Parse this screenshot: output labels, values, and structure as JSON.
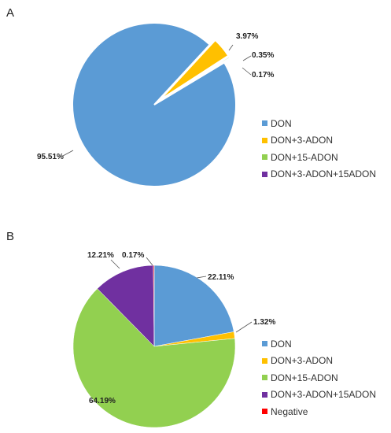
{
  "chart_data": [
    {
      "type": "pie",
      "panel_label": "A",
      "categories": [
        "DON",
        "DON+3-ADON",
        "DON+15-ADON",
        "DON+3-ADON+15ADON"
      ],
      "values": [
        95.51,
        3.97,
        0.35,
        0.17
      ],
      "data_labels": [
        "95.51%",
        "3.97%",
        "0.35%",
        "0.17%"
      ],
      "colors": [
        "#5b9bd5",
        "#ffc000",
        "#92d050",
        "#7030a0"
      ],
      "exploded_slices": [
        "DON+3-ADON",
        "DON+15-ADON",
        "DON+3-ADON+15ADON"
      ],
      "legend_position": "right"
    },
    {
      "type": "pie",
      "panel_label": "B",
      "categories": [
        "DON",
        "DON+3-ADON",
        "DON+15-ADON",
        "DON+3-ADON+15ADON",
        "Negative"
      ],
      "values": [
        22.11,
        1.32,
        64.19,
        12.21,
        0.17
      ],
      "data_labels": [
        "22.11%",
        "1.32%",
        "64.19%",
        "12.21%",
        "0.17%"
      ],
      "colors": [
        "#5b9bd5",
        "#ffc000",
        "#92d050",
        "#7030a0",
        "#ff0000"
      ],
      "legend_position": "right"
    }
  ]
}
